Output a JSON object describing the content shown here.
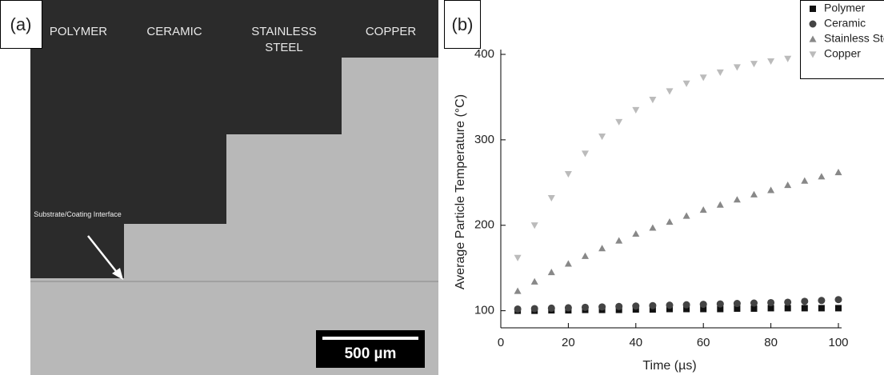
{
  "micrograph": {
    "label": "(a)",
    "columns": [
      "POLYMER",
      "CERAMIC",
      "STAINLESS STEEL",
      "COPPER"
    ],
    "annotation": "Substrate/Coating Interface",
    "scale_bar": "500 µm"
  },
  "chart_data": {
    "type": "scatter",
    "panel_label": "(b)",
    "x_label": "Time (µs)",
    "y_label": "Average Particle Temperature (°C)",
    "x": [
      5,
      10,
      15,
      20,
      25,
      30,
      35,
      40,
      45,
      50,
      55,
      60,
      65,
      70,
      75,
      80,
      85,
      90,
      95,
      100
    ],
    "series": [
      {
        "name": "Polymer",
        "color": "#111111",
        "marker": "square",
        "values": [
          100,
          100,
          100.5,
          100.5,
          101,
          101,
          101,
          101.5,
          101.5,
          102,
          102,
          102,
          102,
          102.5,
          102.5,
          103,
          103,
          103,
          103,
          103
        ]
      },
      {
        "name": "Ceramic",
        "color": "#444444",
        "marker": "circle",
        "values": [
          102,
          102.5,
          103,
          103.5,
          104,
          104.5,
          105,
          105.5,
          106,
          106.5,
          107,
          107.5,
          108,
          108.5,
          109,
          109.5,
          110,
          111,
          112,
          113
        ]
      },
      {
        "name": "Stainless Steel",
        "color": "#888888",
        "marker": "triangle-up",
        "values": [
          123,
          134,
          145,
          155,
          164,
          173,
          182,
          190,
          197,
          204,
          211,
          218,
          224,
          230,
          236,
          241,
          247,
          252,
          257,
          262
        ]
      },
      {
        "name": "Copper",
        "color": "#bbbbbb",
        "marker": "triangle-down",
        "values": [
          162,
          200,
          232,
          260,
          284,
          304,
          321,
          335,
          347,
          357,
          366,
          373,
          379,
          385,
          389,
          392,
          395,
          398,
          400,
          402
        ]
      }
    ],
    "xlim": [
      0,
      100
    ],
    "ylim": [
      80,
      400
    ],
    "xticks": [
      0,
      20,
      40,
      60,
      80,
      100
    ],
    "yticks": [
      100,
      200,
      300,
      400
    ],
    "grid": false,
    "legend": "top-right"
  }
}
